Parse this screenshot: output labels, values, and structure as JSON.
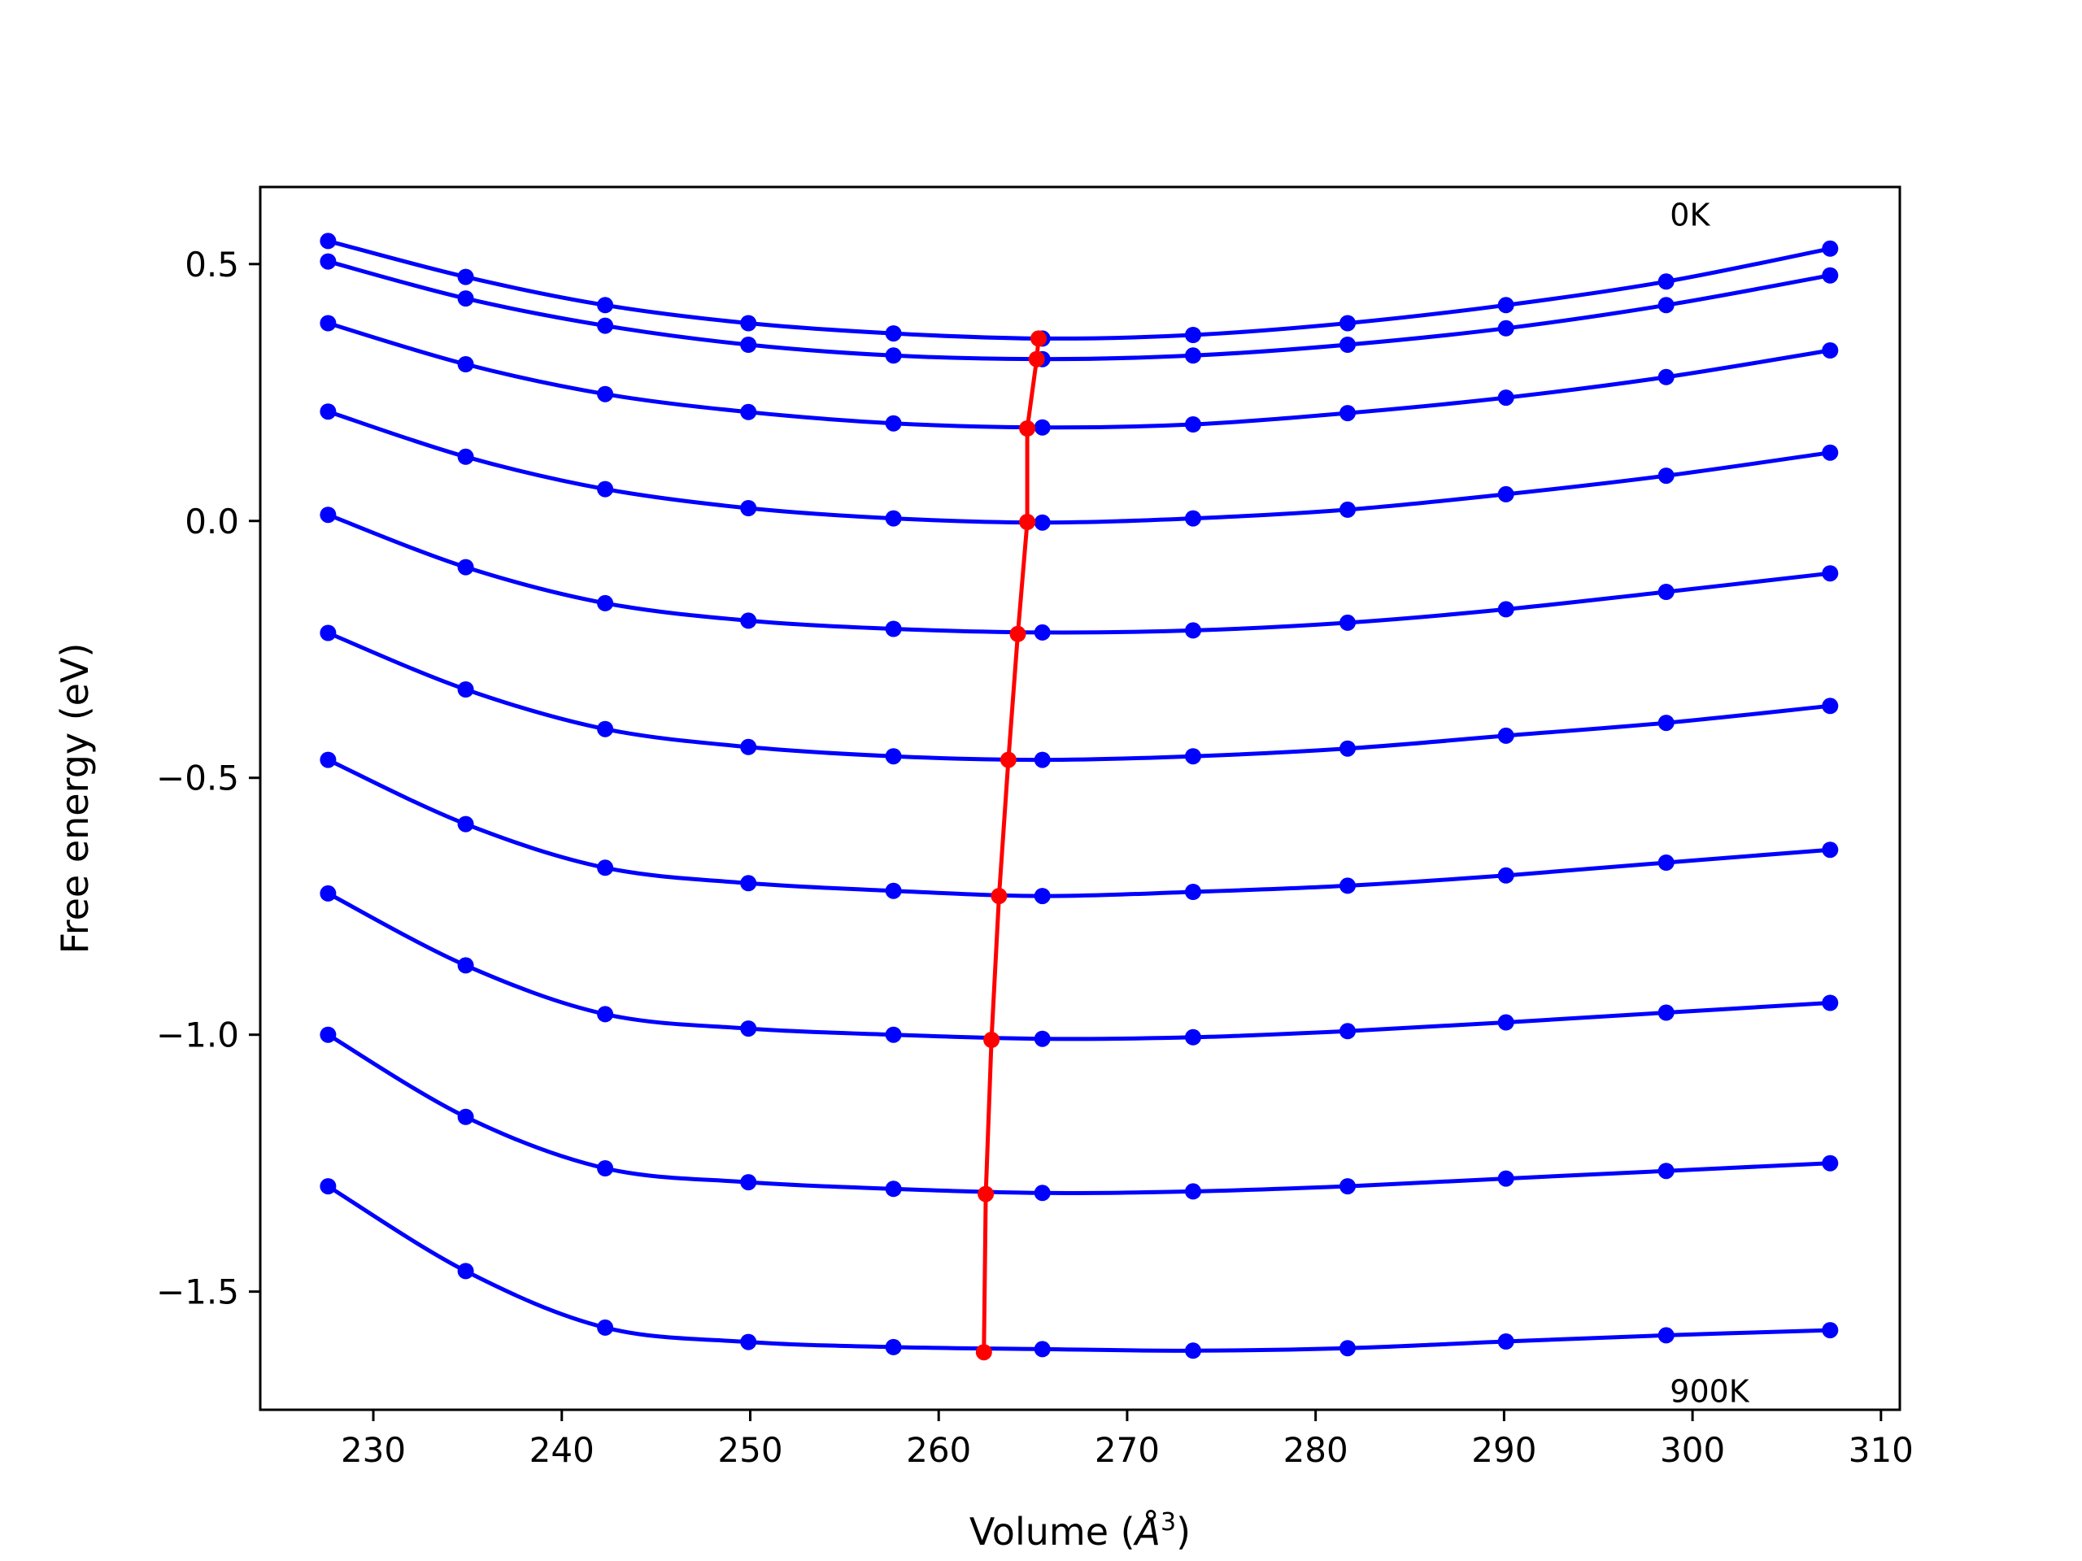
{
  "chart_data": {
    "type": "line",
    "xlabel": "Volume (",
    "xlabel_symbol": "Å",
    "xlabel_exp": "3",
    "xlabel_close": ")",
    "ylabel": "Free energy (eV)",
    "xlim": [
      224,
      311
    ],
    "ylim": [
      -1.73,
      0.65
    ],
    "xticks": [
      230,
      240,
      250,
      260,
      270,
      280,
      290,
      300,
      310
    ],
    "yticks": [
      0.5,
      0.0,
      -0.5,
      -1.0,
      -1.5
    ],
    "ytick_labels": [
      "0.5",
      "0.0",
      "−0.5",
      "−1.0",
      "−1.5"
    ],
    "grid": false,
    "annotations": [
      {
        "text": "0K",
        "x": 298.8,
        "y": 0.575
      },
      {
        "text": "900K",
        "x": 298.8,
        "y": -1.715
      }
    ],
    "curve_color": "#0000ff",
    "min_color": "#ff0000",
    "x_points": [
      227.6,
      234.9,
      242.3,
      249.9,
      257.6,
      265.5,
      273.5,
      281.7,
      290.1,
      298.6,
      307.3
    ],
    "series": [
      {
        "values": [
          0.545,
          0.475,
          0.42,
          0.385,
          0.365,
          0.355,
          0.362,
          0.385,
          0.42,
          0.466,
          0.53
        ],
        "min": [
          265.3,
          0.355
        ]
      },
      {
        "values": [
          0.505,
          0.433,
          0.38,
          0.343,
          0.322,
          0.315,
          0.322,
          0.343,
          0.375,
          0.42,
          0.478
        ],
        "min": [
          265.2,
          0.315
        ]
      },
      {
        "values": [
          0.385,
          0.305,
          0.247,
          0.212,
          0.19,
          0.182,
          0.188,
          0.21,
          0.24,
          0.28,
          0.332
        ],
        "min": [
          264.7,
          0.18
        ]
      },
      {
        "values": [
          0.213,
          0.125,
          0.062,
          0.025,
          0.005,
          -0.003,
          0.005,
          0.022,
          0.052,
          0.088,
          0.133
        ],
        "min": [
          264.7,
          -0.002
        ]
      },
      {
        "values": [
          0.012,
          -0.09,
          -0.16,
          -0.194,
          -0.21,
          -0.217,
          -0.213,
          -0.198,
          -0.172,
          -0.138,
          -0.102
        ],
        "min": [
          264.2,
          -0.22
        ]
      },
      {
        "values": [
          -0.218,
          -0.328,
          -0.405,
          -0.44,
          -0.458,
          -0.465,
          -0.458,
          -0.443,
          -0.418,
          -0.393,
          -0.36
        ],
        "min": [
          263.7,
          -0.465
        ]
      },
      {
        "values": [
          -0.465,
          -0.59,
          -0.675,
          -0.705,
          -0.72,
          -0.73,
          -0.722,
          -0.71,
          -0.69,
          -0.665,
          -0.64
        ],
        "min": [
          263.2,
          -0.73
        ]
      },
      {
        "values": [
          -0.725,
          -0.865,
          -0.96,
          -0.988,
          -1.0,
          -1.008,
          -1.005,
          -0.993,
          -0.976,
          -0.957,
          -0.938
        ],
        "min": [
          262.8,
          -1.01
        ]
      },
      {
        "values": [
          -1.0,
          -1.16,
          -1.26,
          -1.287,
          -1.3,
          -1.308,
          -1.305,
          -1.295,
          -1.28,
          -1.265,
          -1.25
        ],
        "min": [
          262.5,
          -1.31
        ]
      },
      {
        "values": [
          -1.295,
          -1.46,
          -1.57,
          -1.598,
          -1.608,
          -1.612,
          -1.615,
          -1.61,
          -1.597,
          -1.585,
          -1.575
        ],
        "min": [
          262.4,
          -1.618
        ]
      }
    ]
  }
}
